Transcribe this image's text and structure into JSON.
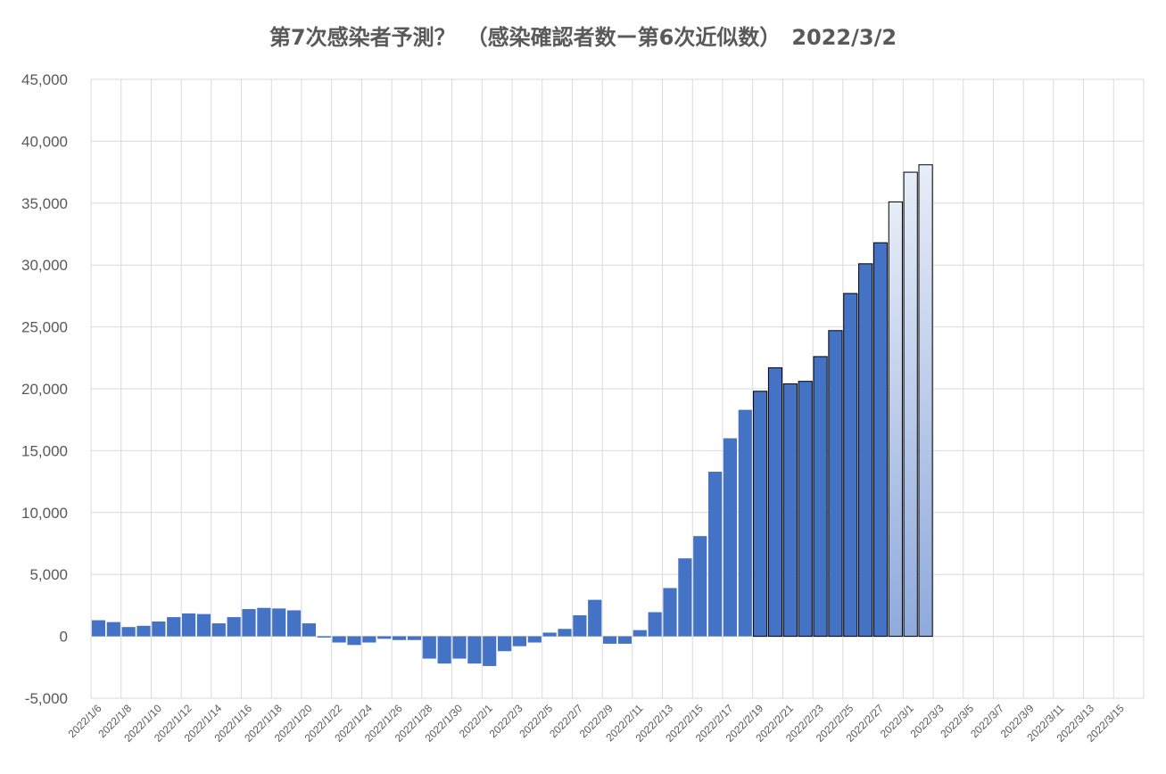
{
  "chart_data": {
    "type": "bar",
    "title": "第7次感染者予測？　（感染確認者数ー第6次近似数）　2022/3/2",
    "xlabel": "",
    "ylabel": "",
    "ylim": [
      -5000,
      45000
    ],
    "yticks": [
      -5000,
      0,
      5000,
      10000,
      15000,
      20000,
      25000,
      30000,
      35000,
      40000,
      45000
    ],
    "ytick_labels": [
      "-5,000",
      "0",
      "5,000",
      "10,000",
      "15,000",
      "20,000",
      "25,000",
      "30,000",
      "35,000",
      "40,000",
      "45,000"
    ],
    "grid": true,
    "colors": {
      "actual": "#4472C4",
      "forecast_light": "#DAE3F3",
      "forecast_edge": "#000000"
    },
    "x_tick_labels": [
      "2022/1/6",
      "2022/1/8",
      "2022/1/10",
      "2022/1/12",
      "2022/1/14",
      "2022/1/16",
      "2022/1/18",
      "2022/1/20",
      "2022/1/22",
      "2022/1/24",
      "2022/1/26",
      "2022/1/28",
      "2022/1/30",
      "2022/2/1",
      "2022/2/3",
      "2022/2/5",
      "2022/2/7",
      "2022/2/9",
      "2022/2/11",
      "2022/2/13",
      "2022/2/15",
      "2022/2/17",
      "2022/2/19",
      "2022/2/21",
      "2022/2/23",
      "2022/2/25",
      "2022/2/27",
      "2022/3/1",
      "2022/3/3",
      "2022/3/5",
      "2022/3/7",
      "2022/3/9",
      "2022/3/11",
      "2022/3/13",
      "2022/3/15"
    ],
    "categories": [
      "2022/1/6",
      "2022/1/7",
      "2022/1/8",
      "2022/1/9",
      "2022/1/10",
      "2022/1/11",
      "2022/1/12",
      "2022/1/13",
      "2022/1/14",
      "2022/1/15",
      "2022/1/16",
      "2022/1/17",
      "2022/1/18",
      "2022/1/19",
      "2022/1/20",
      "2022/1/21",
      "2022/1/22",
      "2022/1/23",
      "2022/1/24",
      "2022/1/25",
      "2022/1/26",
      "2022/1/27",
      "2022/1/28",
      "2022/1/29",
      "2022/1/30",
      "2022/1/31",
      "2022/2/1",
      "2022/2/2",
      "2022/2/3",
      "2022/2/4",
      "2022/2/5",
      "2022/2/6",
      "2022/2/7",
      "2022/2/8",
      "2022/2/9",
      "2022/2/10",
      "2022/2/11",
      "2022/2/12",
      "2022/2/13",
      "2022/2/14",
      "2022/2/15",
      "2022/2/16",
      "2022/2/17",
      "2022/2/18",
      "2022/2/19",
      "2022/2/20",
      "2022/2/21",
      "2022/2/22",
      "2022/2/23",
      "2022/2/24",
      "2022/2/25",
      "2022/2/26",
      "2022/2/27",
      "2022/2/28",
      "2022/3/1",
      "2022/3/2"
    ],
    "values": [
      1300,
      1150,
      750,
      850,
      1200,
      1550,
      1850,
      1800,
      1050,
      1550,
      2200,
      2300,
      2250,
      2100,
      1050,
      -100,
      -500,
      -700,
      -500,
      -200,
      -300,
      -300,
      -1800,
      -2200,
      -1800,
      -2200,
      -2400,
      -1200,
      -800,
      -500,
      300,
      600,
      1700,
      2950,
      -600,
      -600,
      500,
      1950,
      3900,
      6300,
      8100,
      13300,
      16000,
      18300,
      19800,
      21700,
      20400,
      20600,
      22600,
      24700,
      27700,
      30100,
      31800,
      35100,
      37500,
      38100
    ],
    "outlined_from": "2022/2/19",
    "forecast": [
      "2022/2/28",
      "2022/3/1",
      "2022/3/2"
    ]
  }
}
